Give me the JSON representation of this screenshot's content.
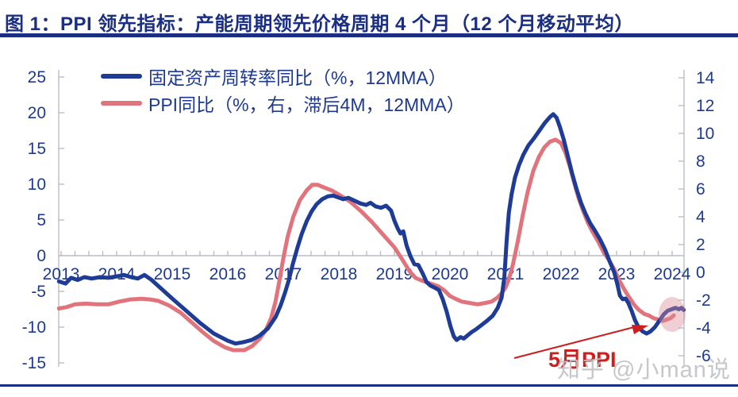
{
  "title": "图 1：PPI 领先指标：产能周期领先价格周期 4 个月（12 个月移动平均）",
  "watermark": "知乎 @小man说",
  "colors": {
    "accent_navy": "#1a2e83",
    "blue_line": "#1e3c96",
    "red_line": "#e0737b",
    "axis_text": "#1e3a8f",
    "axis_gray": "#b9bdc5",
    "annotation_red": "#cc1f1f",
    "highlight_pink": "#d98c97",
    "watermark_gray": "#bfc1c6"
  },
  "chart_data": {
    "type": "line",
    "title": "图 1：PPI 领先指标：产能周期领先价格周期 4 个月（12 个月移动平均）",
    "grid": false,
    "legend_position": "top-left",
    "x_axis": {
      "labels": [
        "2013",
        "2014",
        "2015",
        "2016",
        "2017",
        "2018",
        "2019",
        "2020",
        "2021",
        "2022",
        "2023",
        "2024"
      ],
      "range": [
        2012.96,
        2024.21
      ],
      "minor_tick_interval": 0.25
    },
    "left_axis": {
      "ticks": [
        25,
        20,
        15,
        10,
        5,
        0,
        -5,
        -10,
        -15
      ],
      "range": [
        -15,
        25
      ]
    },
    "right_axis": {
      "ticks": [
        14,
        12,
        10,
        8,
        6,
        4,
        2,
        0,
        -2,
        -4,
        -6
      ],
      "range": [
        -6,
        14
      ]
    },
    "series": [
      {
        "name": "固定资产周转率同比（%，12MMA）",
        "axis": "left",
        "color": "#1e3c96",
        "points": [
          [
            2012.96,
            -3.6
          ],
          [
            2013.08,
            -3.9
          ],
          [
            2013.18,
            -3.1
          ],
          [
            2013.3,
            -3.4
          ],
          [
            2013.42,
            -3.0
          ],
          [
            2013.55,
            -3.2
          ],
          [
            2013.7,
            -3.0
          ],
          [
            2013.85,
            -3.1
          ],
          [
            2014.0,
            -2.9
          ],
          [
            2014.13,
            -2.7
          ],
          [
            2014.26,
            -3.0
          ],
          [
            2014.38,
            -3.2
          ],
          [
            2014.5,
            -2.7
          ],
          [
            2014.63,
            -3.4
          ],
          [
            2014.8,
            -4.6
          ],
          [
            2015.0,
            -6.0
          ],
          [
            2015.25,
            -7.7
          ],
          [
            2015.5,
            -9.4
          ],
          [
            2015.75,
            -10.9
          ],
          [
            2016.0,
            -11.9
          ],
          [
            2016.14,
            -12.3
          ],
          [
            2016.28,
            -12.1
          ],
          [
            2016.43,
            -11.8
          ],
          [
            2016.57,
            -11.2
          ],
          [
            2016.72,
            -10.2
          ],
          [
            2016.86,
            -8.6
          ],
          [
            2016.95,
            -7.0
          ],
          [
            2017.03,
            -5.2
          ],
          [
            2017.1,
            -3.4
          ],
          [
            2017.17,
            -1.2
          ],
          [
            2017.25,
            1.0
          ],
          [
            2017.33,
            3.0
          ],
          [
            2017.42,
            4.8
          ],
          [
            2017.51,
            6.2
          ],
          [
            2017.6,
            7.2
          ],
          [
            2017.7,
            7.9
          ],
          [
            2017.8,
            8.3
          ],
          [
            2017.9,
            8.4
          ],
          [
            2017.97,
            8.2
          ],
          [
            2018.08,
            7.9
          ],
          [
            2018.17,
            8.1
          ],
          [
            2018.28,
            7.7
          ],
          [
            2018.39,
            7.3
          ],
          [
            2018.49,
            7.1
          ],
          [
            2018.57,
            7.4
          ],
          [
            2018.66,
            6.9
          ],
          [
            2018.76,
            6.7
          ],
          [
            2018.85,
            7.0
          ],
          [
            2018.94,
            6.3
          ],
          [
            2019.0,
            4.9
          ],
          [
            2019.06,
            3.8
          ],
          [
            2019.11,
            3.1
          ],
          [
            2019.16,
            3.4
          ],
          [
            2019.22,
            1.4
          ],
          [
            2019.29,
            -0.1
          ],
          [
            2019.36,
            -1.2
          ],
          [
            2019.43,
            -1.3
          ],
          [
            2019.51,
            -2.5
          ],
          [
            2019.58,
            -3.7
          ],
          [
            2019.65,
            -4.2
          ],
          [
            2019.73,
            -4.5
          ],
          [
            2019.8,
            -4.8
          ],
          [
            2019.87,
            -6.1
          ],
          [
            2019.94,
            -7.8
          ],
          [
            2020.01,
            -9.9
          ],
          [
            2020.07,
            -11.3
          ],
          [
            2020.12,
            -11.8
          ],
          [
            2020.19,
            -11.4
          ],
          [
            2020.25,
            -11.6
          ],
          [
            2020.31,
            -11.2
          ],
          [
            2020.39,
            -10.7
          ],
          [
            2020.47,
            -10.3
          ],
          [
            2020.57,
            -9.7
          ],
          [
            2020.67,
            -9.1
          ],
          [
            2020.77,
            -8.4
          ],
          [
            2020.86,
            -7.3
          ],
          [
            2020.93,
            -5.9
          ],
          [
            2020.98,
            -3.0
          ],
          [
            2021.02,
            2.0
          ],
          [
            2021.06,
            6.0
          ],
          [
            2021.11,
            8.6
          ],
          [
            2021.17,
            10.9
          ],
          [
            2021.24,
            12.6
          ],
          [
            2021.32,
            14.1
          ],
          [
            2021.41,
            15.4
          ],
          [
            2021.51,
            16.4
          ],
          [
            2021.61,
            17.5
          ],
          [
            2021.71,
            18.6
          ],
          [
            2021.8,
            19.4
          ],
          [
            2021.86,
            19.8
          ],
          [
            2021.92,
            19.3
          ],
          [
            2021.98,
            18.0
          ],
          [
            2022.05,
            16.2
          ],
          [
            2022.12,
            14.0
          ],
          [
            2022.2,
            11.5
          ],
          [
            2022.28,
            9.3
          ],
          [
            2022.36,
            7.4
          ],
          [
            2022.44,
            5.9
          ],
          [
            2022.52,
            4.6
          ],
          [
            2022.61,
            3.5
          ],
          [
            2022.7,
            2.3
          ],
          [
            2022.79,
            0.9
          ],
          [
            2022.88,
            -0.9
          ],
          [
            2022.96,
            -2.4
          ],
          [
            2023.02,
            -4.2
          ],
          [
            2023.06,
            -5.6
          ],
          [
            2023.11,
            -6.1
          ],
          [
            2023.16,
            -6.0
          ],
          [
            2023.21,
            -6.6
          ],
          [
            2023.27,
            -7.7
          ],
          [
            2023.33,
            -9.0
          ],
          [
            2023.4,
            -10.1
          ],
          [
            2023.47,
            -10.6
          ],
          [
            2023.54,
            -10.9
          ],
          [
            2023.61,
            -10.6
          ],
          [
            2023.69,
            -10.0
          ],
          [
            2023.77,
            -9.1
          ],
          [
            2023.85,
            -8.2
          ],
          [
            2023.92,
            -7.7
          ],
          [
            2023.99,
            -7.5
          ],
          [
            2024.06,
            -7.3
          ],
          [
            2024.12,
            -7.5
          ],
          [
            2024.17,
            -7.3
          ],
          [
            2024.21,
            -7.6
          ]
        ]
      },
      {
        "name": "PPI同比（%，右，滞后4M，12MMA）",
        "axis": "right",
        "color": "#e0737b",
        "points": [
          [
            2012.96,
            -2.6
          ],
          [
            2013.1,
            -2.5
          ],
          [
            2013.25,
            -2.3
          ],
          [
            2013.45,
            -2.25
          ],
          [
            2013.65,
            -2.3
          ],
          [
            2013.85,
            -2.3
          ],
          [
            2014.05,
            -2.1
          ],
          [
            2014.25,
            -1.95
          ],
          [
            2014.45,
            -1.9
          ],
          [
            2014.6,
            -1.95
          ],
          [
            2014.75,
            -2.05
          ],
          [
            2014.95,
            -2.4
          ],
          [
            2015.15,
            -2.9
          ],
          [
            2015.35,
            -3.6
          ],
          [
            2015.55,
            -4.3
          ],
          [
            2015.75,
            -4.95
          ],
          [
            2015.95,
            -5.4
          ],
          [
            2016.1,
            -5.6
          ],
          [
            2016.3,
            -5.6
          ],
          [
            2016.44,
            -5.3
          ],
          [
            2016.57,
            -4.8
          ],
          [
            2016.68,
            -4.2
          ],
          [
            2016.78,
            -3.3
          ],
          [
            2016.86,
            -2.1
          ],
          [
            2016.93,
            -0.6
          ],
          [
            2017.0,
            1.0
          ],
          [
            2017.08,
            2.6
          ],
          [
            2017.18,
            4.0
          ],
          [
            2017.3,
            5.2
          ],
          [
            2017.42,
            5.9
          ],
          [
            2017.52,
            6.3
          ],
          [
            2017.62,
            6.3
          ],
          [
            2017.74,
            6.1
          ],
          [
            2017.87,
            5.9
          ],
          [
            2018.0,
            5.6
          ],
          [
            2018.2,
            5.1
          ],
          [
            2018.4,
            4.4
          ],
          [
            2018.6,
            3.6
          ],
          [
            2018.8,
            2.7
          ],
          [
            2019.0,
            1.8
          ],
          [
            2019.13,
            1.0
          ],
          [
            2019.27,
            0.1
          ],
          [
            2019.38,
            -0.4
          ],
          [
            2019.5,
            -0.6
          ],
          [
            2019.64,
            -0.8
          ],
          [
            2019.79,
            -1.0
          ],
          [
            2019.9,
            -1.3
          ],
          [
            2020.0,
            -1.7
          ],
          [
            2020.1,
            -1.9
          ],
          [
            2020.21,
            -2.1
          ],
          [
            2020.35,
            -2.2
          ],
          [
            2020.5,
            -2.3
          ],
          [
            2020.64,
            -2.2
          ],
          [
            2020.75,
            -2.1
          ],
          [
            2020.86,
            -1.8
          ],
          [
            2020.93,
            -1.5
          ],
          [
            2021.0,
            -1.1
          ],
          [
            2021.06,
            -0.5
          ],
          [
            2021.13,
            0.5
          ],
          [
            2021.22,
            2.2
          ],
          [
            2021.31,
            4.1
          ],
          [
            2021.4,
            5.8
          ],
          [
            2021.5,
            7.3
          ],
          [
            2021.6,
            8.3
          ],
          [
            2021.7,
            9.0
          ],
          [
            2021.8,
            9.4
          ],
          [
            2021.9,
            9.55
          ],
          [
            2022.0,
            9.3
          ],
          [
            2022.08,
            8.6
          ],
          [
            2022.16,
            7.6
          ],
          [
            2022.24,
            6.4
          ],
          [
            2022.32,
            5.3
          ],
          [
            2022.4,
            4.4
          ],
          [
            2022.48,
            3.6
          ],
          [
            2022.57,
            2.9
          ],
          [
            2022.67,
            2.2
          ],
          [
            2022.76,
            1.5
          ],
          [
            2022.86,
            0.9
          ],
          [
            2022.96,
            0.2
          ],
          [
            2023.04,
            -0.5
          ],
          [
            2023.12,
            -1.1
          ],
          [
            2023.21,
            -1.7
          ],
          [
            2023.31,
            -2.3
          ],
          [
            2023.4,
            -2.7
          ],
          [
            2023.5,
            -3.0
          ],
          [
            2023.58,
            -3.1
          ],
          [
            2023.67,
            -3.3
          ],
          [
            2023.76,
            -3.4
          ],
          [
            2023.83,
            -3.5
          ],
          [
            2023.9,
            -3.4
          ],
          [
            2023.97,
            -3.3
          ],
          [
            2024.03,
            -3.1
          ]
        ]
      }
    ],
    "annotations": [
      {
        "type": "arrow-callout",
        "label": "5月PPI",
        "color": "#cc1f1f",
        "target_year": 2023.9
      },
      {
        "type": "highlight-ellipse",
        "color": "#d98c97",
        "center_year": 2023.9
      }
    ]
  }
}
